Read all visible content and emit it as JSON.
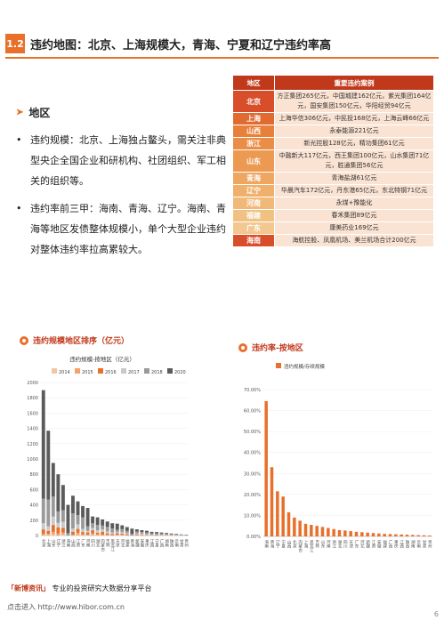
{
  "section": {
    "number": "1.2",
    "title": "违约地图：北京、上海规模大，青海、宁夏和辽宁违约率高"
  },
  "subhead": "地区",
  "bullets": [
    "违约规模：北京、上海独占鳌头，需关注非典型央企全国企业和研机构、社团组织、军工相关的组织等。",
    "违约率前三甲：海南、青海、辽宁。海南、青海等地区发债整体规模小，单个大型企业违约对整体违约率拉高累较大。"
  ],
  "table": {
    "header_region": "地区",
    "header_cases": "重要违约案例",
    "rows": [
      {
        "region": "北京",
        "cases": "方正集团265亿元，中国城建162亿元，紫光集团164亿元，国安集团150亿元，华阳经贸94亿元",
        "color": "#d94e2a"
      },
      {
        "region": "上海",
        "cases": "上海华信306亿元，中民投168亿元，上海云峰66亿元",
        "color": "#e06a30"
      },
      {
        "region": "山西",
        "cases": "永泰能源221亿元",
        "color": "#e8803a"
      },
      {
        "region": "浙江",
        "cases": "新光控股128亿元，精功集团61亿元",
        "color": "#ea8d46"
      },
      {
        "region": "山东",
        "cases": "中融新大117亿元，西王集团100亿元，山水集团71亿元，胜通集团56亿元",
        "color": "#ec9a52"
      },
      {
        "region": "青海",
        "cases": "青海盐湖61亿元",
        "color": "#eea660"
      },
      {
        "region": "辽宁",
        "cases": "华晨汽车172亿元，丹东港65亿元，东北特钢71亿元",
        "color": "#efb06c"
      },
      {
        "region": "河南",
        "cases": "永煤+豫能化",
        "color": "#f0b978"
      },
      {
        "region": "福建",
        "cases": "春禾集团89亿元",
        "color": "#f1c184"
      },
      {
        "region": "广东",
        "cases": "康美药业169亿元",
        "color": "#f2c890"
      },
      {
        "region": "海南",
        "cases": "海航控股、凤凰机场、美兰机场合计200亿元",
        "color": "#d94e2a"
      }
    ]
  },
  "chart1_heading": "违约规模地区排序（亿元）",
  "chart2_heading": "违约率-按地区",
  "chart_data": [
    {
      "type": "bar",
      "title": "违约规模-按地区（亿元）",
      "stacked": true,
      "ylim": [
        0,
        2000
      ],
      "yticks": [
        0,
        200,
        400,
        600,
        800,
        1000,
        1200,
        1400,
        1600,
        1800,
        2000
      ],
      "legend_position": "top",
      "categories": [
        "北京",
        "上海",
        "山东",
        "辽宁",
        "浙江",
        "海南",
        "山西",
        "江苏",
        "广东",
        "河南",
        "四川",
        "湖北",
        "内蒙古",
        "吉林",
        "黑龙江",
        "天津",
        "河北",
        "福建",
        "青海",
        "新疆",
        "安徽",
        "重庆",
        "江西",
        "宁夏",
        "广西",
        "湖南",
        "陕西",
        "云南",
        "甘肃",
        "贵州"
      ],
      "series": [
        {
          "name": "2014",
          "color": "#f5c7a1",
          "values": [
            0,
            5,
            8,
            0,
            10,
            0,
            0,
            6,
            3,
            0,
            4,
            2,
            0,
            0,
            0,
            0,
            2,
            0,
            0,
            0,
            3,
            0,
            0,
            0,
            0,
            0,
            0,
            0,
            0,
            0
          ]
        },
        {
          "name": "2015",
          "color": "#f3a36a",
          "values": [
            20,
            15,
            40,
            25,
            30,
            0,
            10,
            30,
            12,
            10,
            25,
            15,
            10,
            8,
            5,
            10,
            6,
            6,
            0,
            5,
            4,
            3,
            2,
            0,
            2,
            2,
            1,
            1,
            0,
            0
          ]
        },
        {
          "name": "2016",
          "color": "#e8702a",
          "values": [
            60,
            40,
            90,
            80,
            60,
            0,
            40,
            50,
            30,
            30,
            40,
            20,
            40,
            20,
            15,
            20,
            15,
            10,
            0,
            10,
            8,
            6,
            5,
            10,
            4,
            4,
            3,
            2,
            2,
            1
          ]
        },
        {
          "name": "2017",
          "color": "#c9c9c9",
          "values": [
            80,
            60,
            110,
            60,
            80,
            0,
            40,
            60,
            40,
            20,
            30,
            30,
            30,
            25,
            20,
            15,
            20,
            14,
            0,
            10,
            10,
            8,
            6,
            5,
            6,
            5,
            4,
            3,
            2,
            2
          ]
        },
        {
          "name": "2018",
          "color": "#9a9a9a",
          "values": [
            320,
            350,
            260,
            150,
            150,
            30,
            200,
            120,
            150,
            60,
            60,
            70,
            50,
            60,
            50,
            30,
            40,
            30,
            20,
            25,
            20,
            20,
            15,
            10,
            12,
            10,
            8,
            6,
            4,
            3
          ]
        },
        {
          "name": "2020",
          "color": "#5b5b5b",
          "values": [
            1420,
            900,
            440,
            485,
            330,
            370,
            230,
            180,
            150,
            240,
            90,
            100,
            80,
            70,
            70,
            80,
            50,
            50,
            70,
            30,
            25,
            25,
            20,
            20,
            15,
            12,
            10,
            8,
            6,
            4
          ]
        }
      ]
    },
    {
      "type": "bar",
      "title": "违约规模/存续规模",
      "ylim": [
        0,
        0.7
      ],
      "yticks": [
        "0.00%",
        "10.00%",
        "20.00%",
        "30.00%",
        "40.00%",
        "50.00%",
        "60.00%",
        "70.00%"
      ],
      "legend_position": "top",
      "categories": [
        "海南",
        "青海",
        "辽宁",
        "宁夏",
        "山西",
        "北京",
        "内蒙古",
        "上海",
        "黑龙江",
        "吉林",
        "山东",
        "河南",
        "浙江",
        "湖北",
        "四川",
        "天津",
        "广东",
        "河北",
        "新疆",
        "江苏",
        "安徽",
        "福建",
        "广西",
        "重庆",
        "江西",
        "陕西",
        "湖南",
        "云南",
        "甘肃",
        "贵州"
      ],
      "series": [
        {
          "name": "违约规模/存续规模",
          "color": "#e8702a",
          "values": [
            0.645,
            0.33,
            0.215,
            0.19,
            0.115,
            0.09,
            0.075,
            0.06,
            0.055,
            0.05,
            0.045,
            0.04,
            0.035,
            0.03,
            0.028,
            0.025,
            0.022,
            0.02,
            0.018,
            0.016,
            0.014,
            0.012,
            0.011,
            0.01,
            0.009,
            0.008,
            0.007,
            0.006,
            0.005,
            0.004
          ]
        }
      ]
    }
  ],
  "footer": {
    "brand": "「新博资讯」",
    "brand_desc": "专业的投资研究大数据分享平台",
    "url_label": "点击进入 http://www.hibor.com.cn"
  },
  "page_number": "6"
}
